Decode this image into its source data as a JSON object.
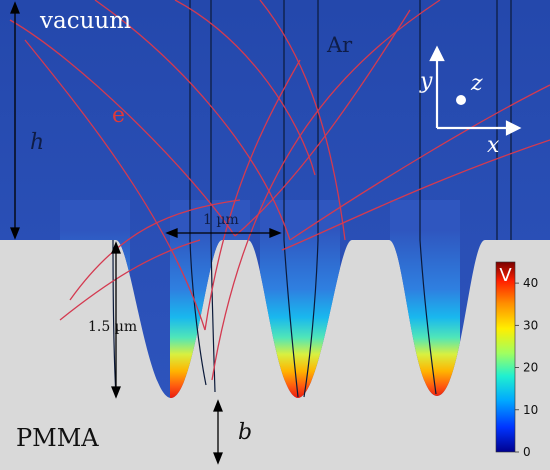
{
  "labels": {
    "vacuum": "vacuum",
    "gas": "Ar",
    "electron": "e",
    "height": "h",
    "substrate": "PMMA",
    "base_thickness": "b",
    "pitch": "1 µm",
    "depth": "1.5 µm"
  },
  "axes": {
    "x": "x",
    "y": "y",
    "z": "z"
  },
  "colorbar": {
    "title": "V",
    "ticks": [
      "0",
      "10",
      "20",
      "30",
      "40"
    ],
    "range": [
      0,
      45
    ],
    "colors": [
      "#00008f",
      "#0034ff",
      "#00a8ff",
      "#20f0d0",
      "#a0ff60",
      "#ffee00",
      "#ff9000",
      "#ff2000",
      "#7a0000"
    ]
  },
  "colors": {
    "vacuum_fill": "#2a4fb5",
    "substrate_fill": "#d9d9d9",
    "electron_trajectory": "#d43a50",
    "field_line": "#0b1a3a",
    "annotation": "#000000",
    "electron_label": "#e03a3a"
  }
}
